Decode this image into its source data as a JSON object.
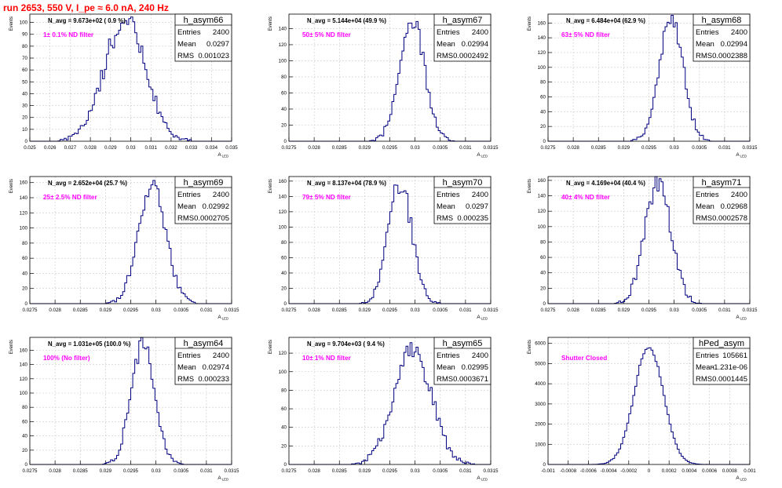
{
  "page_title": "run 2653,   550 V, I_pe ≈ 6.0 nA, 240 Hz",
  "colors": {
    "title": "#ff0000",
    "annotation": "#ff00ff",
    "histogram": "#000080",
    "grid": "#c8c8c8",
    "frame": "#000000"
  },
  "chart_data": [
    {
      "type": "bar",
      "name": "h_asym66",
      "entries": "2400",
      "mean": "0.0297",
      "rms": "0.001023",
      "navg_label": "N_avg = 9.673e+02 ( 0.9 %)",
      "filter_label": "1± 0.1% ND filter",
      "xlabel": "A_LED",
      "ylabel": "Events",
      "xlim": [
        0.025,
        0.035
      ],
      "ylim": [
        0,
        107
      ],
      "xticks": [
        "0.025",
        "0.026",
        "0.027",
        "0.028",
        "0.029",
        "0.03",
        "0.031",
        "0.032",
        "0.033",
        "0.034",
        "0.035"
      ],
      "yticks": [
        0,
        10,
        20,
        30,
        40,
        50,
        60,
        70,
        80,
        90,
        100
      ],
      "hist_mean": 0.0297,
      "hist_rms": 0.001023,
      "hist_peak": 101
    },
    {
      "type": "bar",
      "name": "h_asym67",
      "entries": "2400",
      "mean": "0.02994",
      "rms": "0.0002492",
      "navg_label": "N_avg = 5.144e+04 (49.9 %)",
      "filter_label": "50± 5% ND filter",
      "xlabel": "A_LED",
      "ylabel": "Events",
      "xlim": [
        0.0275,
        0.0315
      ],
      "ylim": [
        0,
        158
      ],
      "xticks": [
        "0.0275",
        "0.028",
        "0.0285",
        "0.029",
        "0.0295",
        "0.03",
        "0.0305",
        "0.031",
        "0.0315"
      ],
      "yticks": [
        0,
        20,
        40,
        60,
        80,
        100,
        120,
        140
      ],
      "hist_mean": 0.02994,
      "hist_rms": 0.0002492,
      "hist_peak": 150
    },
    {
      "type": "bar",
      "name": "h_asym68",
      "entries": "2400",
      "mean": "0.02994",
      "rms": "0.0002388",
      "navg_label": "N_avg = 6.484e+04 (62.9 %)",
      "filter_label": "63± 5% ND filter",
      "xlabel": "A_LED",
      "ylabel": "Events",
      "xlim": [
        0.0275,
        0.0315
      ],
      "ylim": [
        0,
        172
      ],
      "xticks": [
        "0.0275",
        "0.028",
        "0.0285",
        "0.029",
        "0.0295",
        "0.03",
        "0.0305",
        "0.031",
        "0.0315"
      ],
      "yticks": [
        0,
        20,
        40,
        60,
        80,
        100,
        120,
        140,
        160
      ],
      "hist_mean": 0.02994,
      "hist_rms": 0.0002388,
      "hist_peak": 163
    },
    {
      "type": "bar",
      "name": "h_asym69",
      "entries": "2400",
      "mean": "0.02992",
      "rms": "0.0002705",
      "navg_label": "N_avg = 2.652e+04 (25.7 %)",
      "filter_label": "25± 2.5% ND filter",
      "xlabel": "A_LED",
      "ylabel": "Events",
      "xlim": [
        0.0275,
        0.0315
      ],
      "ylim": [
        0,
        168
      ],
      "xticks": [
        "0.0275",
        "0.028",
        "0.0285",
        "0.029",
        "0.0295",
        "0.03",
        "0.0305",
        "0.031",
        "0.0315"
      ],
      "yticks": [
        0,
        20,
        40,
        60,
        80,
        100,
        120,
        140,
        160
      ],
      "hist_mean": 0.02992,
      "hist_rms": 0.0002705,
      "hist_peak": 158
    },
    {
      "type": "bar",
      "name": "h_asym70",
      "entries": "2400",
      "mean": "0.0297",
      "rms": "0.000235",
      "navg_label": "N_avg = 8.137e+04 (78.9 %)",
      "filter_label": "79± 5% ND filter",
      "xlabel": "A_LED",
      "ylabel": "Events",
      "xlim": [
        0.0275,
        0.0315
      ],
      "ylim": [
        0,
        166
      ],
      "xticks": [
        "0.0275",
        "0.028",
        "0.0285",
        "0.029",
        "0.0295",
        "0.03",
        "0.0305",
        "0.031",
        "0.0315"
      ],
      "yticks": [
        0,
        20,
        40,
        60,
        80,
        100,
        120,
        140,
        160
      ],
      "hist_mean": 0.0297,
      "hist_rms": 0.000235,
      "hist_peak": 157
    },
    {
      "type": "bar",
      "name": "h_asym71",
      "entries": "2400",
      "mean": "0.02968",
      "rms": "0.0002578",
      "navg_label": "N_avg = 4.169e+04 (40.4 %)",
      "filter_label": "40± 4% ND filter",
      "xlabel": "A_LED",
      "ylabel": "Events",
      "xlim": [
        0.0275,
        0.0315
      ],
      "ylim": [
        0,
        165
      ],
      "xticks": [
        "0.0275",
        "0.028",
        "0.0285",
        "0.029",
        "0.0295",
        "0.03",
        "0.0305",
        "0.031",
        "0.0315"
      ],
      "yticks": [
        0,
        20,
        40,
        60,
        80,
        100,
        120,
        140,
        160
      ],
      "hist_mean": 0.02968,
      "hist_rms": 0.0002578,
      "hist_peak": 157
    },
    {
      "type": "bar",
      "name": "h_asym64",
      "entries": "2400",
      "mean": "0.02974",
      "rms": "0.000233",
      "navg_label": "N_avg = 1.031e+05 (100.0 %)",
      "filter_label": "100% (No filter)",
      "xlabel": "A_LED",
      "ylabel": "Events",
      "xlim": [
        0.0275,
        0.0315
      ],
      "ylim": [
        0,
        178
      ],
      "xticks": [
        "0.0275",
        "0.028",
        "0.0285",
        "0.029",
        "0.0295",
        "0.03",
        "0.0305",
        "0.031",
        "0.0315"
      ],
      "yticks": [
        0,
        20,
        40,
        60,
        80,
        100,
        120,
        140,
        160
      ],
      "hist_mean": 0.02974,
      "hist_rms": 0.000233,
      "hist_peak": 168
    },
    {
      "type": "bar",
      "name": "h_asym65",
      "entries": "2400",
      "mean": "0.02995",
      "rms": "0.0003671",
      "navg_label": "N_avg = 9.704e+03 ( 9.4 %)",
      "filter_label": "10± 1% ND filter",
      "xlabel": "A_LED",
      "ylabel": "Events",
      "xlim": [
        0.0275,
        0.0315
      ],
      "ylim": [
        0,
        137
      ],
      "xticks": [
        "0.0275",
        "0.028",
        "0.0285",
        "0.029",
        "0.0295",
        "0.03",
        "0.0305",
        "0.031",
        "0.0315"
      ],
      "yticks": [
        0,
        20,
        40,
        60,
        80,
        100,
        120
      ],
      "hist_mean": 0.02995,
      "hist_rms": 0.0003671,
      "hist_peak": 126
    },
    {
      "type": "bar",
      "name": "hPed_asym",
      "entries": "105661",
      "mean": "-1.231e-06",
      "rms": "0.0001445",
      "navg_label": "",
      "filter_label": "Shutter Closed",
      "xlabel": "A_LED",
      "ylabel": "Events",
      "xlim": [
        -0.001,
        0.001
      ],
      "ylim": [
        0,
        6300
      ],
      "xticks": [
        "-0.001",
        "-0.0008",
        "-0.0006",
        "-0.0004",
        "-0.0002",
        "0",
        "0.0002",
        "0.0004",
        "0.0006",
        "0.0008",
        "0.001"
      ],
      "yticks": [
        0,
        1000,
        2000,
        3000,
        4000,
        5000,
        6000
      ],
      "hist_mean": -1.231e-06,
      "hist_rms": 0.0001445,
      "hist_peak": 5850
    }
  ]
}
